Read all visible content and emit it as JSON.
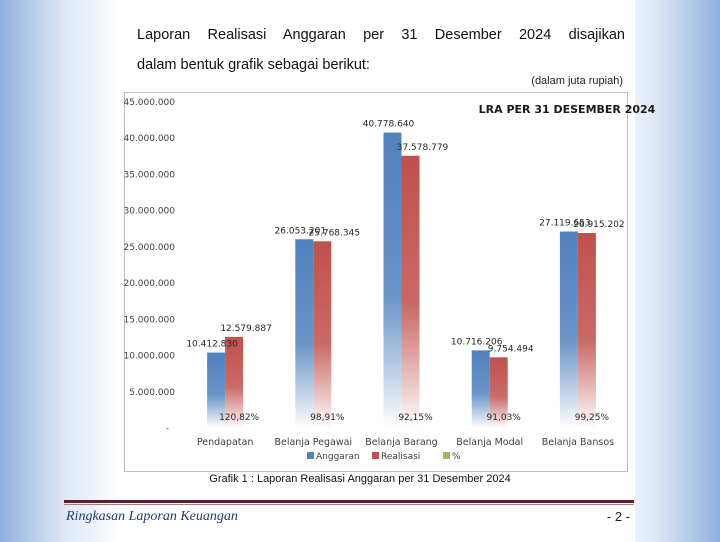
{
  "intro_line1": "Laporan Realisasi Anggaran per 31 Desember 2024 disajikan",
  "intro_line2": "dalam bentuk grafik sebagai berikut:",
  "unit_note": "(dalam juta rupiah)",
  "caption": "Grafik 1 : Laporan Realisasi Anggaran per 31 Desember 2024",
  "footer": {
    "left": "Ringkasan Laporan Keuangan",
    "right": "- 2 -"
  },
  "colors": {
    "anggaran": "#4f81bd",
    "realisasi": "#c0504d",
    "percent": "#9bbb59"
  },
  "chart_data": {
    "type": "bar",
    "title": "LRA PER 31 DESEMBER 2024",
    "categories": [
      "Pendapatan",
      "Belanja Pegawai",
      "Belanja Barang",
      "Belanja Modal",
      "Belanja Bansos"
    ],
    "series": [
      {
        "name": "Anggaran",
        "values": [
          10412830,
          26053201,
          40778640,
          10716206,
          27119653
        ],
        "labels": [
          "10.412.830",
          "26.053.201",
          "40.778.640",
          "10.716.206",
          "27.119.653"
        ]
      },
      {
        "name": "Realisasi",
        "values": [
          12579887,
          25768345,
          37578779,
          9754494,
          26915202
        ],
        "labels": [
          "12.579.887",
          "25.768.345",
          "37.578.779",
          "9.754.494",
          "26.915.202"
        ]
      },
      {
        "name": "%",
        "values": [
          120.82,
          98.91,
          92.15,
          91.03,
          99.25
        ],
        "labels": [
          "120,82%",
          "98,91%",
          "92,15%",
          "91,03%",
          "99,25%"
        ]
      }
    ],
    "yticks": [
      "-",
      "5.000.000",
      "10.000.000",
      "15.000.000",
      "20.000.000",
      "25.000.000",
      "30.000.000",
      "35.000.000",
      "40.000.000",
      "45.000.000"
    ],
    "ylim": [
      0,
      45000000
    ],
    "legend_position": "bottom",
    "grid": false
  }
}
